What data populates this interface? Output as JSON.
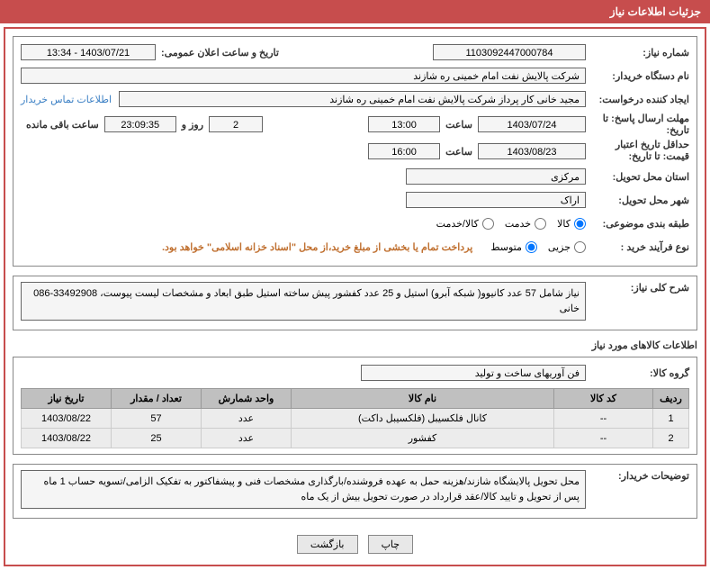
{
  "header": "جزئیات اطلاعات نیاز",
  "fields": {
    "need_no_label": "شماره نیاز:",
    "need_no": "1103092447000784",
    "announce_label": "تاریخ و ساعت اعلان عمومی:",
    "announce_value": "1403/07/21 - 13:34",
    "buyer_org_label": "نام دستگاه خریدار:",
    "buyer_org": "شرکت پالایش نفت امام خمینی  ره  شازند",
    "requester_label": "ایجاد کننده درخواست:",
    "requester": "مجید خانی کار پرداز شرکت پالایش نفت امام خمینی  ره  شازند",
    "contact_link": "اطلاعات تماس خریدار",
    "reply_deadline_label": "مهلت ارسال پاسخ: تا تاریخ:",
    "reply_date": "1403/07/24",
    "time_label": "ساعت",
    "reply_time": "13:00",
    "remain_days": "2",
    "day_and": "روز و",
    "remain_time": "23:09:35",
    "remain_label": "ساعت باقی مانده",
    "price_valid_label": "حداقل تاریخ اعتبار قیمت: تا تاریخ:",
    "price_valid_date": "1403/08/23",
    "price_valid_time": "16:00",
    "province_label": "استان محل تحویل:",
    "province": "مرکزی",
    "city_label": "شهر محل تحویل:",
    "city": "اراک",
    "category_label": "طبقه بندی موضوعی:",
    "cat_goods": "کالا",
    "cat_service": "خدمت",
    "cat_goods_service": "کالا/خدمت",
    "process_label": "نوع فرآیند خرید :",
    "proc_small": "جزیی",
    "proc_medium": "متوسط",
    "payment_note": "پرداخت تمام یا بخشی از مبلغ خرید،از محل \"اسناد خزانه اسلامی\" خواهد بود.",
    "summary_label": "شرح کلی نیاز:",
    "summary_text": "نیاز شامل 57 عدد کانیوو( شبکه آبرو) استیل و 25 عدد کفشور پیش ساخته استیل طبق ابعاد و مشخصات لیست پیوست، 33492908-086 خانی",
    "items_section": "اطلاعات کالاهای مورد نیاز",
    "group_label": "گروه کالا:",
    "group_value": "فن آوریهای ساخت و تولید",
    "explain_label": "توضیحات خریدار:",
    "explain_text": "محل تحویل پالایشگاه شازند/هزینه حمل به عهده فروشنده/بارگذاری مشخصات فنی و پیشفاکتور به تفکیک الزامی/تسویه حساب 1 ماه پس از تحویل و تایید کالا/عقد قرارداد در صورت تحویل بیش از یک ماه"
  },
  "table": {
    "headers": {
      "row": "ردیف",
      "code": "کد کالا",
      "name": "نام کالا",
      "unit": "واحد شمارش",
      "qty": "تعداد / مقدار",
      "date": "تاریخ نیاز"
    },
    "rows": [
      {
        "row": "1",
        "code": "--",
        "name": "کانال فلکسیبل (فلکسیبل داکت)",
        "unit": "عدد",
        "qty": "57",
        "date": "1403/08/22"
      },
      {
        "row": "2",
        "code": "--",
        "name": "کفشور",
        "unit": "عدد",
        "qty": "25",
        "date": "1403/08/22"
      }
    ]
  },
  "buttons": {
    "print": "چاپ",
    "back": "بازگشت"
  },
  "col_widths": {
    "row": "40px",
    "code": "110px",
    "name": "auto",
    "unit": "100px",
    "qty": "100px",
    "date": "100px"
  }
}
